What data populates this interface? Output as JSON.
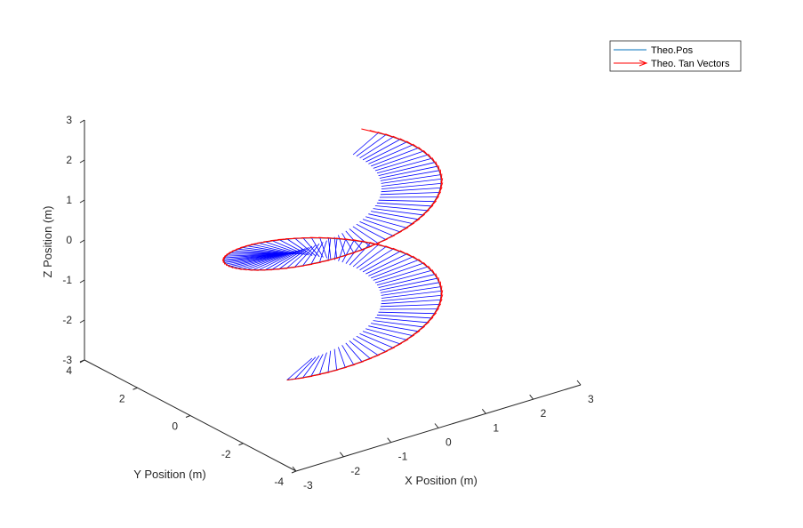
{
  "chart_data": {
    "type": "line",
    "projection": "3d",
    "xlabel": "X Position (m)",
    "ylabel": "Y Position (m)",
    "zlabel": "Z Position (m)",
    "xlim": [
      -3,
      3
    ],
    "ylim": [
      -4,
      4
    ],
    "zlim": [
      -3,
      3
    ],
    "xticks": [
      "-3",
      "-2",
      "-1",
      "0",
      "1",
      "2",
      "3"
    ],
    "yticks": [
      "-4",
      "-2",
      "0",
      "2",
      "4"
    ],
    "zticks": [
      "-3",
      "-2",
      "-1",
      "0",
      "1",
      "2",
      "3"
    ],
    "grid": false,
    "legend": {
      "placement": "top-right",
      "entries": [
        {
          "name": "Theo.Pos",
          "color": "#0072BD",
          "marker": "line"
        },
        {
          "name": "Theo. Tan Vectors",
          "color": "#FF0000",
          "marker": "arrow"
        }
      ]
    },
    "series": [
      {
        "name": "Theo.Pos",
        "color": "#0072BD",
        "curve": "helix",
        "radius": 2,
        "z_range": [
          -2,
          2
        ],
        "turns": 1.5
      },
      {
        "name": "Theo. Tan Vectors",
        "color": "#FF0000",
        "kind": "quiver"
      }
    ],
    "extra_lines": {
      "color": "#0000FF",
      "kind": "radial segments from curve toward z-axis"
    }
  }
}
